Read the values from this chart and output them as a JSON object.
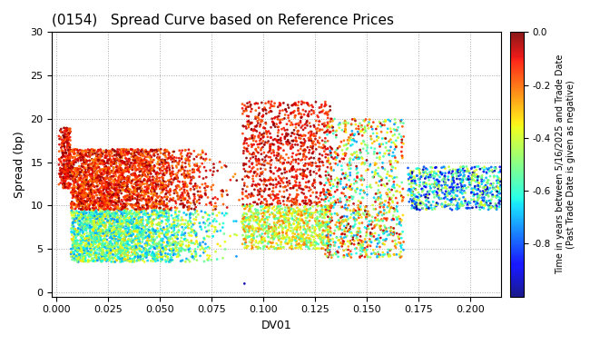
{
  "title": "(0154)   Spread Curve based on Reference Prices",
  "xlabel": "DV01",
  "ylabel": "Spread (bp)",
  "xlim": [
    -0.002,
    0.215
  ],
  "ylim": [
    -0.5,
    30
  ],
  "yticks": [
    0,
    5,
    10,
    15,
    20,
    25,
    30
  ],
  "xticks": [
    0.0,
    0.025,
    0.05,
    0.075,
    0.1,
    0.125,
    0.15,
    0.175,
    0.2
  ],
  "colorbar_label": "Time in years between 5/16/2025 and Trade Date\n(Past Trade Date is given as negative)",
  "cmap": "jet",
  "clim": [
    -1.0,
    0.0
  ],
  "cticks": [
    0.0,
    -0.2,
    -0.4,
    -0.6,
    -0.8
  ],
  "background": "#ffffff",
  "grid_color": "#aaaaaa",
  "grid_style": "dotted",
  "point_size": 4
}
